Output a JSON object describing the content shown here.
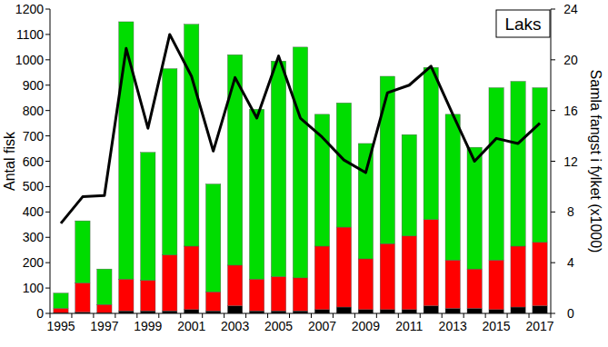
{
  "chart_data": {
    "type": "bar",
    "title": "Laks",
    "stacked": true,
    "grid": false,
    "y_label": "Antal fisk",
    "y2_label": "Samla fangst i fylket (x1000)",
    "categories": [
      "1995",
      null,
      "1997",
      null,
      "1999",
      null,
      "2001",
      null,
      "2003",
      null,
      "2005",
      null,
      "2007",
      null,
      "2009",
      null,
      "2011",
      null,
      "2013",
      null,
      "2015",
      null,
      "2017"
    ],
    "ylim": [
      0,
      1200
    ],
    "yticks": [
      0,
      100,
      200,
      300,
      400,
      500,
      600,
      700,
      800,
      900,
      1000,
      1100,
      1200
    ],
    "y2lim": [
      0,
      24
    ],
    "y2ticks": [
      0,
      4,
      8,
      12,
      16,
      20,
      24
    ],
    "series": [
      {
        "type": "bar",
        "color": "#000000",
        "values": [
          3,
          5,
          3,
          10,
          10,
          10,
          15,
          10,
          30,
          10,
          10,
          10,
          15,
          25,
          15,
          15,
          15,
          30,
          20,
          20,
          15,
          25,
          30
        ]
      },
      {
        "type": "bar",
        "color": "#ff0000",
        "values": [
          17,
          115,
          32,
          125,
          120,
          220,
          250,
          75,
          160,
          125,
          135,
          130,
          250,
          315,
          200,
          260,
          290,
          340,
          190,
          155,
          195,
          240,
          250
        ]
      },
      {
        "type": "bar",
        "color": "#00dd00",
        "values": [
          60,
          245,
          140,
          1015,
          505,
          735,
          875,
          425,
          830,
          670,
          850,
          910,
          520,
          490,
          455,
          660,
          400,
          600,
          575,
          480,
          680,
          650,
          610
        ]
      },
      {
        "type": "line",
        "axis": "y2",
        "color": "#000000",
        "values": [
          7.1,
          9.2,
          9.3,
          20.9,
          14.6,
          22.0,
          18.7,
          12.8,
          18.6,
          15.4,
          20.3,
          15.4,
          13.9,
          12.1,
          11.1,
          17.4,
          18.0,
          19.5,
          15.7,
          12.0,
          13.8,
          13.4,
          15.0
        ]
      }
    ]
  }
}
